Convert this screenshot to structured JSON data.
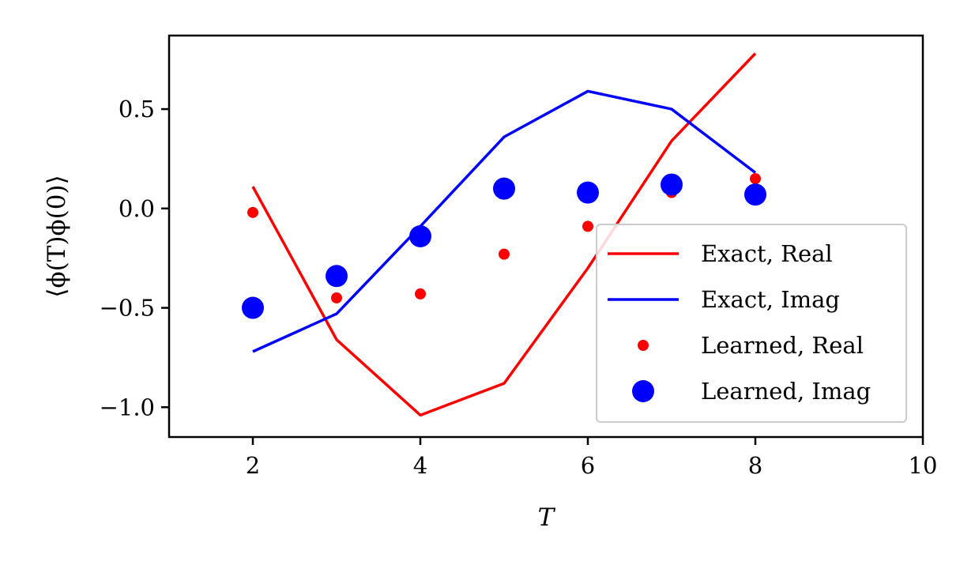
{
  "chart_data": {
    "type": "line",
    "title": "",
    "xlabel": "T",
    "ylabel": "⟨ϕ(T)ϕ(0)⟩",
    "xlim": [
      1,
      10
    ],
    "ylim": [
      -1.15,
      0.87
    ],
    "xticks": [
      2,
      4,
      6,
      8,
      10
    ],
    "yticks": [
      0.5,
      0.0,
      -0.5,
      -1.0
    ],
    "xtick_labels": [
      "2",
      "4",
      "6",
      "8",
      "10"
    ],
    "ytick_labels": [
      "0.5",
      "0.0",
      "−0.5",
      "−1.0"
    ],
    "grid": false,
    "legend_position": "lower-right",
    "series": [
      {
        "name": "Exact, Real",
        "kind": "line",
        "color": "#ff0000",
        "x": [
          2,
          3,
          4,
          5,
          6,
          7,
          8
        ],
        "y": [
          0.11,
          -0.66,
          -1.04,
          -0.88,
          -0.3,
          0.34,
          0.78
        ]
      },
      {
        "name": "Exact, Imag",
        "kind": "line",
        "color": "#0000ff",
        "x": [
          2,
          3,
          4,
          5,
          6,
          7,
          8
        ],
        "y": [
          -0.72,
          -0.53,
          -0.09,
          0.36,
          0.59,
          0.5,
          0.18
        ]
      },
      {
        "name": "Learned, Real",
        "kind": "scatter",
        "size": "small",
        "color": "#ff0000",
        "x": [
          2,
          3,
          4,
          5,
          6,
          7,
          8
        ],
        "y": [
          -0.02,
          -0.45,
          -0.43,
          -0.23,
          -0.09,
          0.08,
          0.15
        ]
      },
      {
        "name": "Learned, Imag",
        "kind": "scatter",
        "size": "large",
        "color": "#0000ff",
        "x": [
          2,
          3,
          4,
          5,
          6,
          7,
          8
        ],
        "y": [
          -0.5,
          -0.34,
          -0.14,
          0.1,
          0.08,
          0.12,
          0.07
        ]
      }
    ]
  }
}
